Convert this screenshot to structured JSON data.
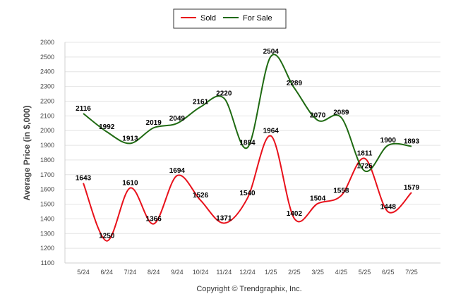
{
  "chart_data": {
    "type": "line",
    "categories": [
      "5/24",
      "6/24",
      "7/24",
      "8/24",
      "9/24",
      "10/24",
      "11/24",
      "12/24",
      "1/25",
      "2/25",
      "3/25",
      "4/25",
      "5/25",
      "6/25",
      "7/25"
    ],
    "series": [
      {
        "name": "Sold",
        "color": "#e8111b",
        "values": [
          1643,
          1250,
          1610,
          1366,
          1694,
          1526,
          1371,
          1540,
          1964,
          1402,
          1504,
          1558,
          1811,
          1448,
          1579
        ]
      },
      {
        "name": "For Sale",
        "color": "#1f6a12",
        "values": [
          2116,
          1992,
          1913,
          2019,
          2049,
          2161,
          2220,
          1884,
          2504,
          2289,
          2070,
          2089,
          1726,
          1900,
          1893
        ]
      }
    ],
    "ylabel": "Average Price (in $,000)",
    "ylim": [
      1100,
      2600
    ],
    "yticks": [
      1100,
      1200,
      1300,
      1400,
      1500,
      1600,
      1700,
      1800,
      1900,
      2000,
      2100,
      2200,
      2300,
      2400,
      2500,
      2600
    ],
    "grid": true,
    "legend": "top-center",
    "credit": "Copyright © Trendgraphix, Inc."
  }
}
